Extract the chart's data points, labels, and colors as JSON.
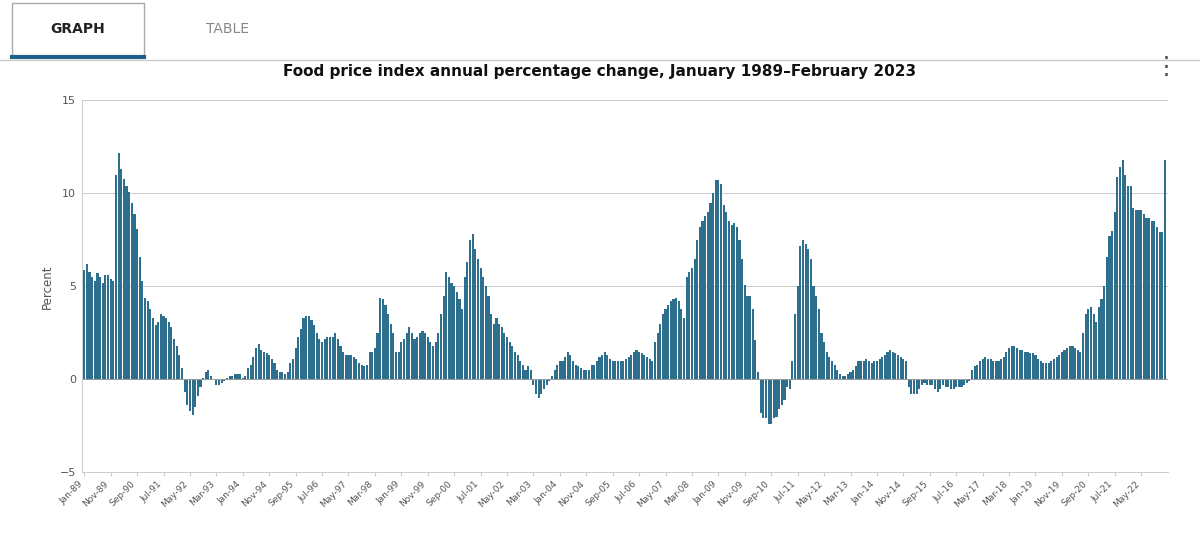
{
  "title": "Food price index annual percentage change, January 1989–February 2023",
  "ylabel": "Percent",
  "bar_color": "#2e6f8e",
  "background_color": "#ffffff",
  "plot_bg_color": "#ffffff",
  "ylim": [
    -5,
    15
  ],
  "yticks": [
    -5,
    0,
    5,
    10,
    15
  ],
  "tab_graph_label": "GRAPH",
  "tab_table_label": "TABLE",
  "values": [
    5.9,
    6.2,
    5.8,
    5.5,
    5.3,
    5.7,
    5.5,
    5.2,
    5.6,
    5.6,
    5.4,
    5.3,
    11.0,
    12.2,
    11.3,
    10.8,
    10.4,
    10.1,
    9.5,
    8.9,
    8.1,
    6.6,
    5.3,
    4.4,
    4.2,
    3.8,
    3.3,
    2.9,
    3.1,
    3.5,
    3.4,
    3.3,
    3.1,
    2.8,
    2.2,
    1.8,
    1.3,
    0.6,
    -0.7,
    -1.4,
    -1.7,
    -1.9,
    -1.5,
    -0.9,
    -0.4,
    0.1,
    0.4,
    0.5,
    0.2,
    0.0,
    -0.3,
    -0.3,
    -0.2,
    -0.1,
    0.1,
    0.2,
    0.2,
    0.3,
    0.3,
    0.3,
    0.1,
    0.2,
    0.6,
    0.8,
    1.2,
    1.7,
    1.9,
    1.6,
    1.5,
    1.4,
    1.3,
    1.1,
    0.9,
    0.5,
    0.4,
    0.4,
    0.3,
    0.4,
    0.9,
    1.1,
    1.7,
    2.3,
    2.7,
    3.3,
    3.4,
    3.4,
    3.2,
    2.9,
    2.5,
    2.2,
    2.0,
    2.2,
    2.3,
    2.3,
    2.3,
    2.5,
    2.2,
    1.8,
    1.5,
    1.3,
    1.3,
    1.3,
    1.2,
    1.1,
    0.9,
    0.8,
    0.7,
    0.8,
    1.5,
    1.5,
    1.7,
    2.5,
    4.4,
    4.3,
    4.0,
    3.5,
    3.0,
    2.5,
    1.5,
    1.5,
    2.0,
    2.2,
    2.5,
    2.8,
    2.5,
    2.2,
    2.3,
    2.5,
    2.6,
    2.5,
    2.3,
    2.0,
    1.8,
    2.0,
    2.5,
    3.5,
    4.5,
    5.8,
    5.5,
    5.2,
    5.0,
    4.7,
    4.3,
    3.8,
    5.5,
    6.3,
    7.5,
    7.8,
    7.0,
    6.5,
    6.0,
    5.5,
    5.0,
    4.5,
    3.5,
    3.0,
    3.3,
    3.0,
    2.8,
    2.5,
    2.3,
    2.0,
    1.8,
    1.5,
    1.3,
    1.0,
    0.8,
    0.5,
    0.7,
    0.5,
    -0.3,
    -0.8,
    -1.0,
    -0.8,
    -0.5,
    -0.3,
    -0.1,
    0.2,
    0.5,
    0.8,
    1.0,
    1.0,
    1.2,
    1.5,
    1.3,
    1.0,
    0.8,
    0.7,
    0.6,
    0.5,
    0.5,
    0.5,
    0.8,
    0.8,
    1.0,
    1.2,
    1.3,
    1.5,
    1.3,
    1.1,
    1.0,
    1.0,
    1.0,
    1.0,
    1.0,
    1.1,
    1.2,
    1.3,
    1.5,
    1.6,
    1.5,
    1.4,
    1.3,
    1.2,
    1.1,
    1.0,
    2.0,
    2.5,
    3.0,
    3.5,
    3.8,
    4.0,
    4.2,
    4.3,
    4.4,
    4.2,
    3.8,
    3.3,
    5.5,
    5.8,
    6.0,
    6.5,
    7.5,
    8.2,
    8.5,
    8.8,
    9.0,
    9.5,
    10.0,
    10.7,
    10.7,
    10.5,
    9.4,
    9.0,
    8.5,
    8.3,
    8.4,
    8.2,
    7.5,
    6.5,
    5.1,
    4.5,
    4.5,
    3.8,
    2.1,
    0.4,
    -1.8,
    -2.1,
    -2.1,
    -2.4,
    -2.4,
    -2.1,
    -2.0,
    -1.6,
    -1.4,
    -1.1,
    -0.4,
    -0.5,
    1.0,
    3.5,
    5.0,
    7.2,
    7.5,
    7.3,
    7.0,
    6.5,
    5.0,
    4.5,
    3.8,
    2.5,
    2.0,
    1.5,
    1.2,
    1.0,
    0.8,
    0.5,
    0.3,
    0.2,
    0.2,
    0.3,
    0.4,
    0.5,
    0.7,
    1.0,
    1.0,
    1.0,
    1.1,
    1.0,
    0.9,
    1.0,
    1.0,
    1.1,
    1.2,
    1.3,
    1.5,
    1.6,
    1.5,
    1.4,
    1.3,
    1.2,
    1.1,
    1.0,
    -0.4,
    -0.8,
    -0.8,
    -0.8,
    -0.5,
    -0.3,
    -0.2,
    -0.3,
    -0.3,
    -0.3,
    -0.5,
    -0.7,
    -0.5,
    -0.3,
    -0.4,
    -0.4,
    -0.5,
    -0.5,
    -0.4,
    -0.4,
    -0.4,
    -0.3,
    -0.2,
    -0.1,
    0.5,
    0.7,
    0.8,
    1.0,
    1.1,
    1.2,
    1.1,
    1.1,
    1.0,
    1.0,
    1.0,
    1.1,
    1.2,
    1.5,
    1.7,
    1.8,
    1.8,
    1.7,
    1.6,
    1.6,
    1.5,
    1.5,
    1.4,
    1.4,
    1.3,
    1.1,
    1.0,
    0.9,
    0.9,
    0.9,
    1.0,
    1.1,
    1.2,
    1.3,
    1.5,
    1.6,
    1.7,
    1.8,
    1.8,
    1.7,
    1.6,
    1.5,
    2.5,
    3.5,
    3.8,
    3.9,
    3.5,
    3.1,
    3.9,
    4.3,
    5.0,
    6.6,
    7.7,
    8.0,
    9.0,
    10.9,
    11.4,
    11.8,
    11.0,
    10.4,
    10.4,
    9.2,
    9.1,
    9.1,
    9.1,
    8.9,
    8.7,
    8.7,
    8.5,
    8.5,
    8.2,
    7.9,
    7.9,
    11.8
  ],
  "x_tick_labels": [
    "Jan-89",
    "Nov-89",
    "Sep-90",
    "Jul-91",
    "May-92",
    "Mar-93",
    "Jan-94",
    "Nov-94",
    "Sep-95",
    "Jul-96",
    "May-97",
    "Mar-98",
    "Jan-99",
    "Nov-99",
    "Sep-00",
    "Jul-01",
    "May-02",
    "Mar-03",
    "Jan-04",
    "Nov-04",
    "Sep-05",
    "Jul-06",
    "May-07",
    "Mar-08",
    "Jan-09",
    "Nov-09",
    "Sep-10",
    "Jul-11",
    "May-12",
    "Mar-13",
    "Jan-14",
    "Nov-14",
    "Sep-15",
    "Jul-16",
    "May-17",
    "Mar-18",
    "Jan-19",
    "Nov-19",
    "Sep-20",
    "Jul-21",
    "May-22"
  ]
}
